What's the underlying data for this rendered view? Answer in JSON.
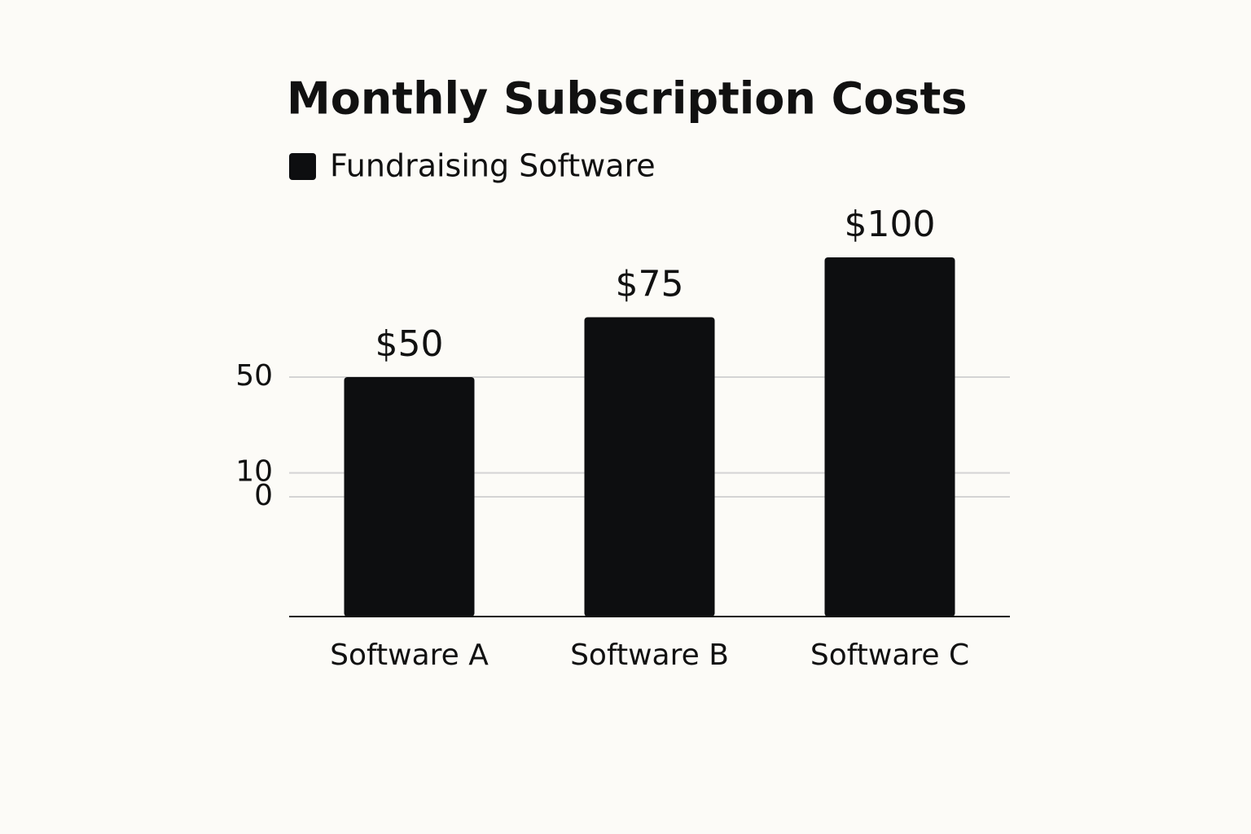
{
  "chart_data": {
    "type": "bar",
    "title": "Monthly Subscription Costs",
    "categories": [
      "Software A",
      "Software B",
      "Software C"
    ],
    "series": [
      {
        "name": "Fundraising Software",
        "color": "#0d0e10",
        "values": [
          50,
          75,
          100
        ],
        "value_labels": [
          "$50",
          "$75",
          "$100"
        ]
      }
    ],
    "ylim": [
      -50,
      110
    ],
    "yticks": [
      10,
      50,
      0
    ],
    "grid": true,
    "legend": "top-left"
  }
}
